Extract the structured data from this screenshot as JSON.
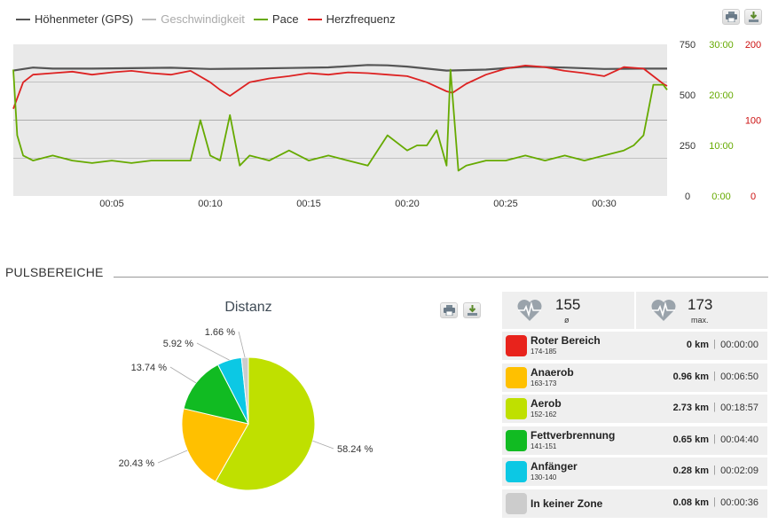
{
  "legend": {
    "items": [
      {
        "label": "Höhenmeter (GPS)",
        "color": "#555555"
      },
      {
        "label": "Geschwindigkeit",
        "color": "#bbbbbb"
      },
      {
        "label": "Pace",
        "color": "#66aa00"
      },
      {
        "label": "Herzfrequenz",
        "color": "#dd2222"
      }
    ]
  },
  "section_title": "PULSBEREICHE",
  "stats": {
    "avg_value": "155",
    "avg_label": "ø",
    "max_value": "173",
    "max_label": "max."
  },
  "zones": [
    {
      "name": "Roter Bereich",
      "range": "174-185",
      "km": "0 km",
      "time": "00:00:00",
      "color": "#e8231c"
    },
    {
      "name": "Anaerob",
      "range": "163-173",
      "km": "0.96 km",
      "time": "00:06:50",
      "color": "#ffc000"
    },
    {
      "name": "Aerob",
      "range": "152-162",
      "km": "2.73 km",
      "time": "00:18:57",
      "color": "#bfe000"
    },
    {
      "name": "Fettverbrennung",
      "range": "141-151",
      "km": "0.65 km",
      "time": "00:04:40",
      "color": "#11bb22"
    },
    {
      "name": "Anfänger",
      "range": "130-140",
      "km": "0.28 km",
      "time": "00:02:09",
      "color": "#0cc8e4"
    },
    {
      "name": "In keiner Zone",
      "range": "",
      "km": "0.08 km",
      "time": "00:00:36",
      "color": "#cccccc"
    }
  ],
  "chart_data": [
    {
      "type": "line",
      "x_unit": "minutes",
      "xlim": [
        0,
        33.2
      ],
      "x_ticks": [
        "00:05",
        "00:10",
        "00:15",
        "00:20",
        "00:25",
        "00:30"
      ],
      "y_axes": [
        {
          "name": "Höhenmeter (GPS)",
          "ticks": [
            "0",
            "250",
            "500",
            "750"
          ],
          "range": [
            0,
            750
          ],
          "color": "#333333"
        },
        {
          "name": "Pace",
          "ticks": [
            "0:00",
            "10:00",
            "20:00",
            "30:00"
          ],
          "range": [
            0,
            30
          ],
          "color": "#66aa00"
        },
        {
          "name": "Herzfrequenz",
          "ticks": [
            "0",
            "100",
            "200"
          ],
          "range": [
            0,
            200
          ],
          "color": "#cc1111"
        }
      ],
      "series": [
        {
          "name": "Höhenmeter (GPS)",
          "axis": 0,
          "color": "#555555",
          "x": [
            0,
            1,
            2,
            4,
            6,
            8,
            10,
            12,
            14,
            16,
            18,
            19,
            20,
            22,
            24,
            26,
            28,
            30,
            32,
            33.2
          ],
          "y": [
            620,
            635,
            630,
            630,
            632,
            634,
            628,
            630,
            633,
            636,
            648,
            646,
            640,
            620,
            625,
            640,
            635,
            628,
            630,
            630
          ]
        },
        {
          "name": "Herzfrequenz",
          "axis": 2,
          "color": "#dd2222",
          "x": [
            0,
            0.5,
            1,
            2,
            3,
            4,
            5,
            6,
            7,
            8,
            9,
            10,
            10.5,
            11,
            12,
            13,
            14,
            15,
            16,
            17,
            18,
            19,
            20,
            21,
            22,
            22.3,
            23,
            24,
            25,
            26,
            27,
            28,
            29,
            30,
            31,
            32,
            33,
            33.2
          ],
          "y": [
            115,
            150,
            160,
            162,
            164,
            160,
            163,
            165,
            162,
            160,
            165,
            150,
            140,
            132,
            150,
            155,
            158,
            162,
            160,
            163,
            162,
            160,
            158,
            150,
            138,
            136,
            148,
            160,
            168,
            172,
            170,
            165,
            162,
            158,
            170,
            168,
            148,
            145
          ]
        },
        {
          "name": "Pace",
          "axis": 1,
          "color": "#66aa00",
          "x": [
            0,
            0.2,
            0.5,
            1,
            2,
            3,
            4,
            5,
            6,
            7,
            8,
            9,
            9.5,
            10,
            10.5,
            11,
            11.5,
            12,
            13,
            14,
            15,
            16,
            17,
            18,
            19,
            20,
            20.5,
            21,
            21.5,
            22,
            22.2,
            22.6,
            23,
            24,
            25,
            26,
            27,
            28,
            29,
            30,
            31,
            31.5,
            32,
            32.5,
            33,
            33.2
          ],
          "y": [
            25,
            12,
            8,
            7,
            8,
            7,
            6.5,
            7,
            6.5,
            7,
            7,
            7,
            15,
            8,
            7,
            16,
            6,
            8,
            7,
            9,
            7,
            8,
            7,
            6,
            12,
            9,
            10,
            10,
            13,
            6,
            25,
            5,
            6,
            7,
            7,
            8,
            7,
            8,
            7,
            8,
            9,
            10,
            12,
            22,
            22,
            21
          ]
        }
      ]
    },
    {
      "type": "pie",
      "title": "Distanz",
      "slices": [
        {
          "label": "58.24 %",
          "value": 58.24,
          "color": "#bfe000"
        },
        {
          "label": "20.43 %",
          "value": 20.43,
          "color": "#ffc000"
        },
        {
          "label": "13.74 %",
          "value": 13.74,
          "color": "#11bb22"
        },
        {
          "label": "5.92 %",
          "value": 5.92,
          "color": "#0cc8e4"
        },
        {
          "label": "1.66 %",
          "value": 1.66,
          "color": "#cccccc"
        }
      ]
    }
  ]
}
